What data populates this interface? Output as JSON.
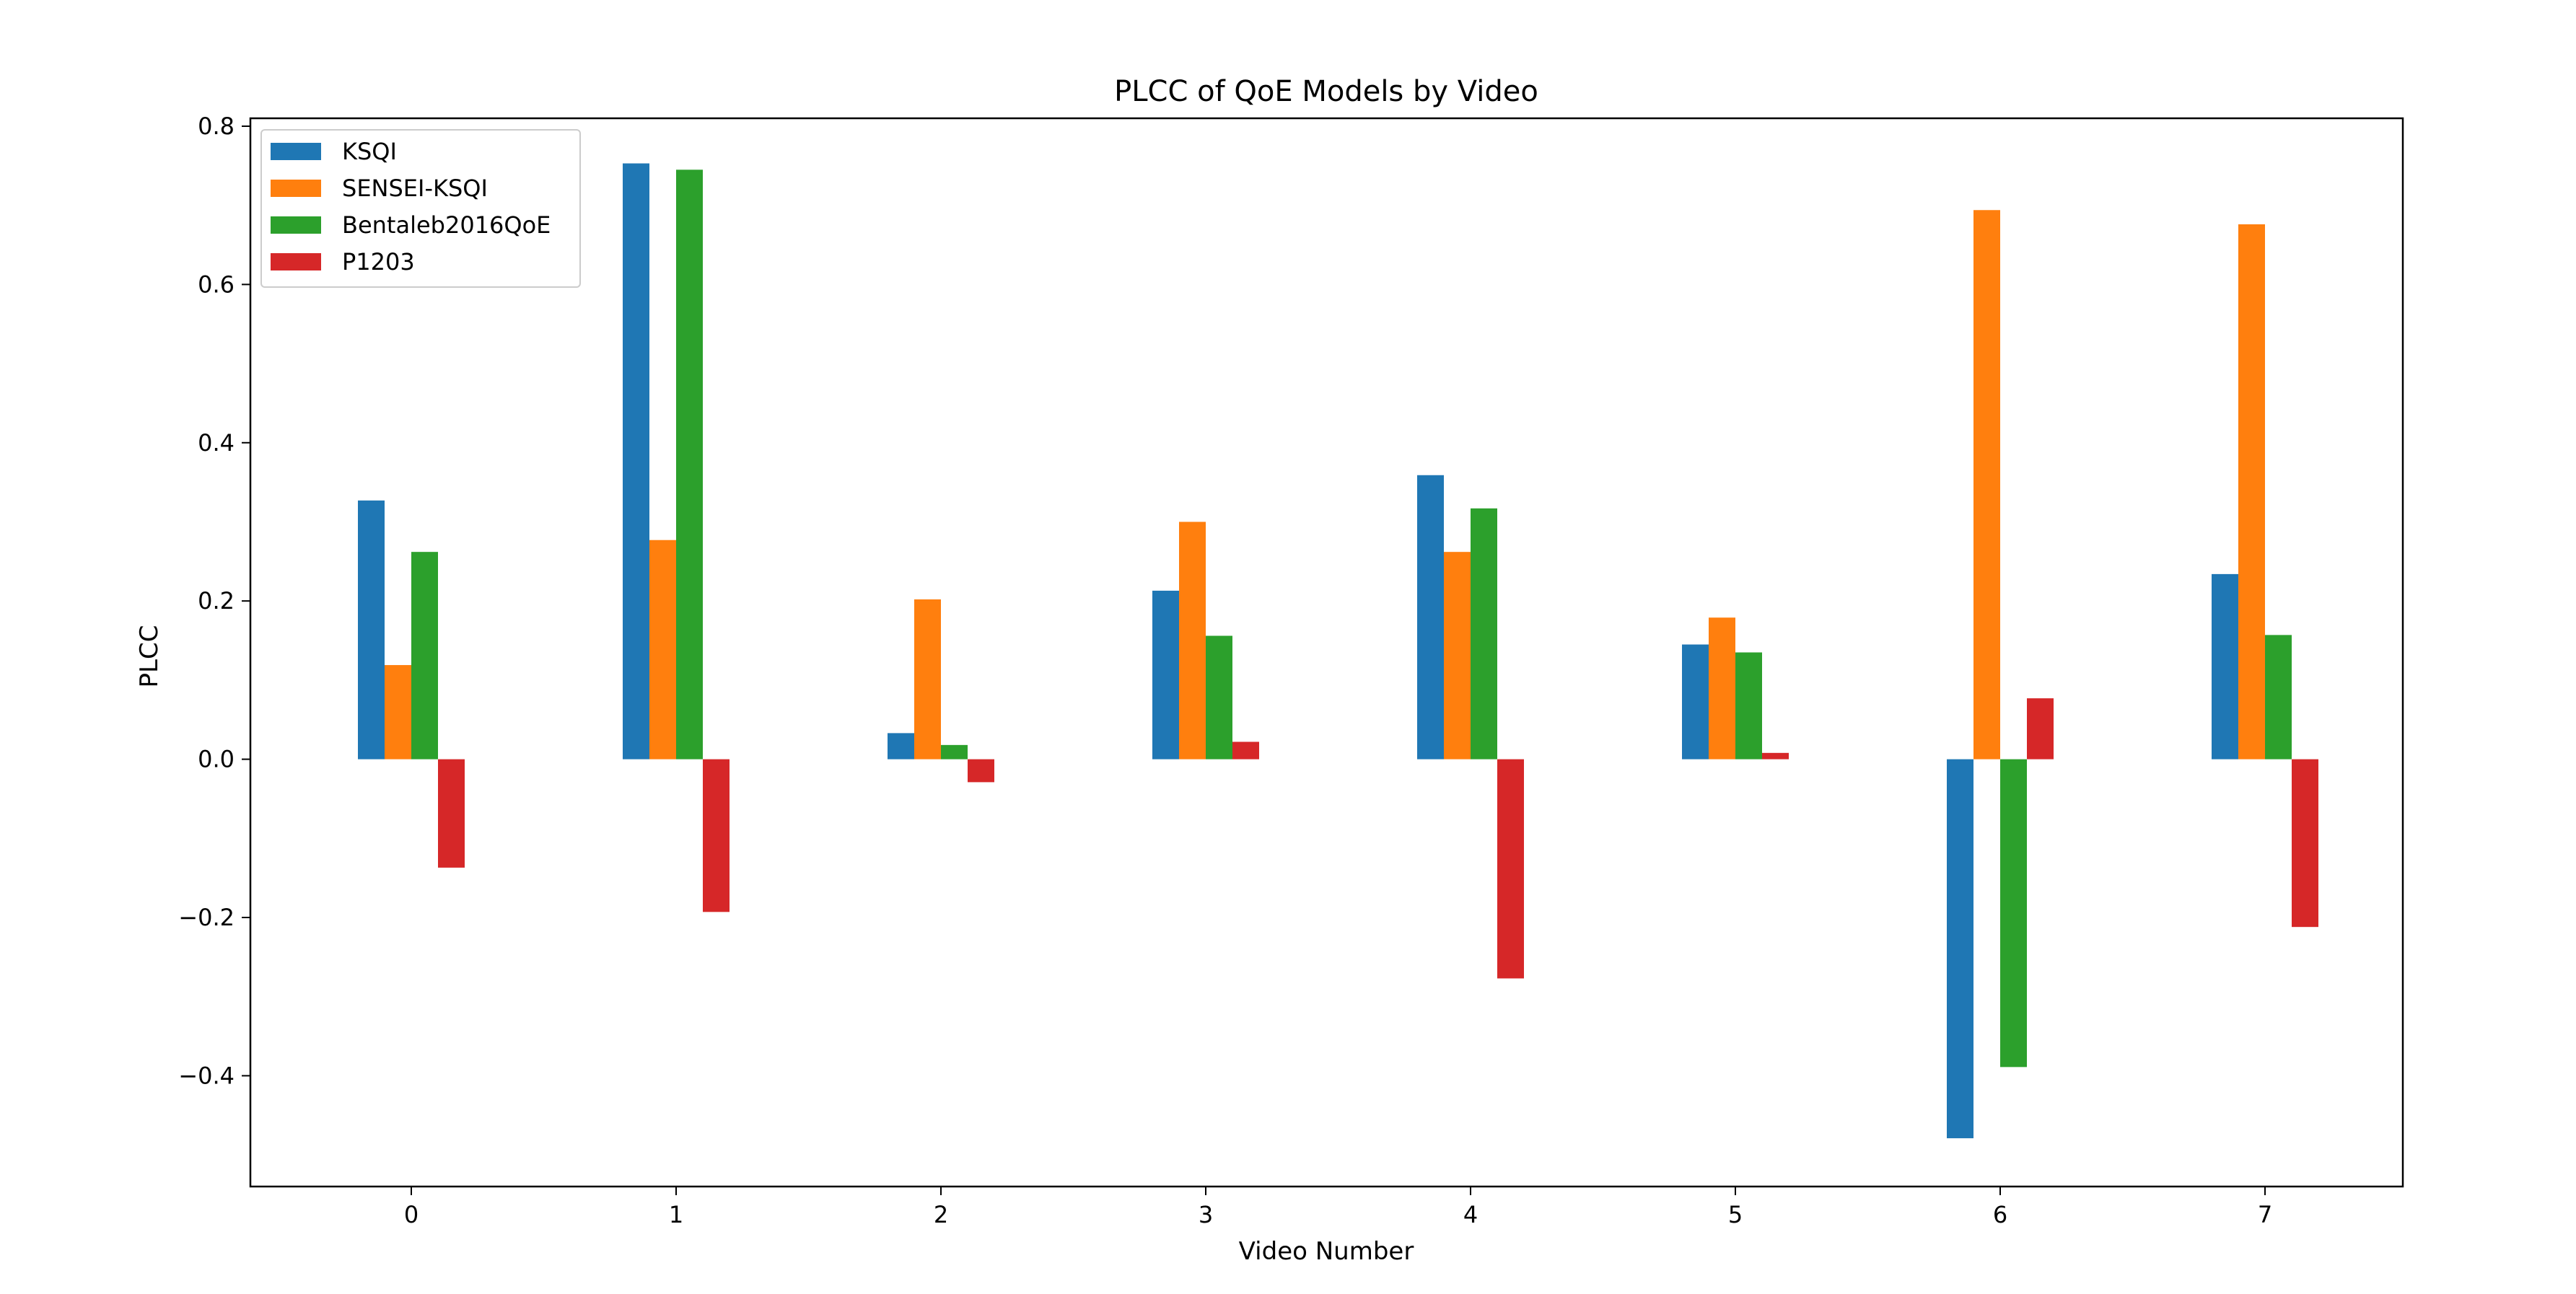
{
  "chart_data": {
    "type": "bar",
    "title": "PLCC of QoE Models by Video",
    "xlabel": "Video Number",
    "ylabel": "PLCC",
    "categories": [
      "0",
      "1",
      "2",
      "3",
      "4",
      "5",
      "6",
      "7"
    ],
    "ylim": [
      -0.54,
      0.81
    ],
    "yticks": [
      -0.4,
      -0.2,
      0.0,
      0.2,
      0.4,
      0.6,
      0.8
    ],
    "ytick_labels": [
      "−0.4",
      "−0.2",
      "0.0",
      "0.2",
      "0.4",
      "0.6",
      "0.8"
    ],
    "grid": false,
    "legend_position": "upper-left",
    "series": [
      {
        "name": "KSQI",
        "color": "#1f77b4",
        "values": [
          0.327,
          0.753,
          0.033,
          0.213,
          0.359,
          0.145,
          -0.479,
          0.234
        ]
      },
      {
        "name": "SENSEI-KSQI",
        "color": "#ff7f0e",
        "values": [
          0.119,
          0.277,
          0.202,
          0.3,
          0.262,
          0.179,
          0.694,
          0.676
        ]
      },
      {
        "name": "Bentaleb2016QoE",
        "color": "#2ca02c",
        "values": [
          0.262,
          0.745,
          0.018,
          0.156,
          0.317,
          0.135,
          -0.389,
          0.157
        ]
      },
      {
        "name": "P1203",
        "color": "#d62728",
        "values": [
          -0.137,
          -0.193,
          -0.029,
          0.022,
          -0.277,
          0.008,
          0.077,
          -0.212
        ]
      }
    ]
  }
}
